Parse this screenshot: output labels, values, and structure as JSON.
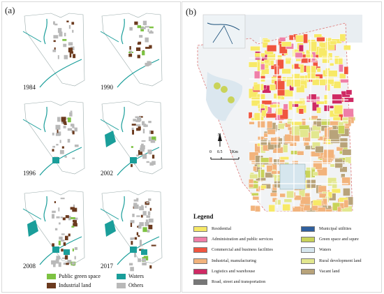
{
  "panel_a": {
    "label": "(a)",
    "years": [
      "1984",
      "1990",
      "1996",
      "2002",
      "2008",
      "2017"
    ],
    "legend": [
      {
        "label": "Public green space",
        "color": "#7dc242"
      },
      {
        "label": "Waters",
        "color": "#1a9e9a"
      },
      {
        "label": "Industrial land",
        "color": "#6b3a1e"
      },
      {
        "label": "Others",
        "color": "#b9b9b9"
      }
    ]
  },
  "panel_b": {
    "label": "(b)",
    "scale": {
      "ticks": [
        "0",
        "0.5",
        "1Km"
      ],
      "north": "N"
    },
    "legend_title": "Legend",
    "legend_left": [
      {
        "label": "Residential",
        "color": "#f7e967"
      },
      {
        "label": "Administration and public services",
        "color": "#ef7fa8"
      },
      {
        "label": "Commercial and business facilities",
        "color": "#f0553f"
      },
      {
        "label": "Industrial, manufacturing",
        "color": "#f2b37c"
      },
      {
        "label": "Logistics and warehouse",
        "color": "#cf2a64"
      },
      {
        "label": "Road, street and transportation",
        "color": "#777777"
      }
    ],
    "legend_right": [
      {
        "label": "Municipal utilities",
        "color": "#2f5f9e"
      },
      {
        "label": "Green space and squre",
        "color": "#c9d35a"
      },
      {
        "label": "Waters",
        "color": "#d6e6ee"
      },
      {
        "label": "Rural development land",
        "color": "#e2e78f"
      },
      {
        "label": "Vacant land",
        "color": "#b8a37a"
      }
    ]
  }
}
